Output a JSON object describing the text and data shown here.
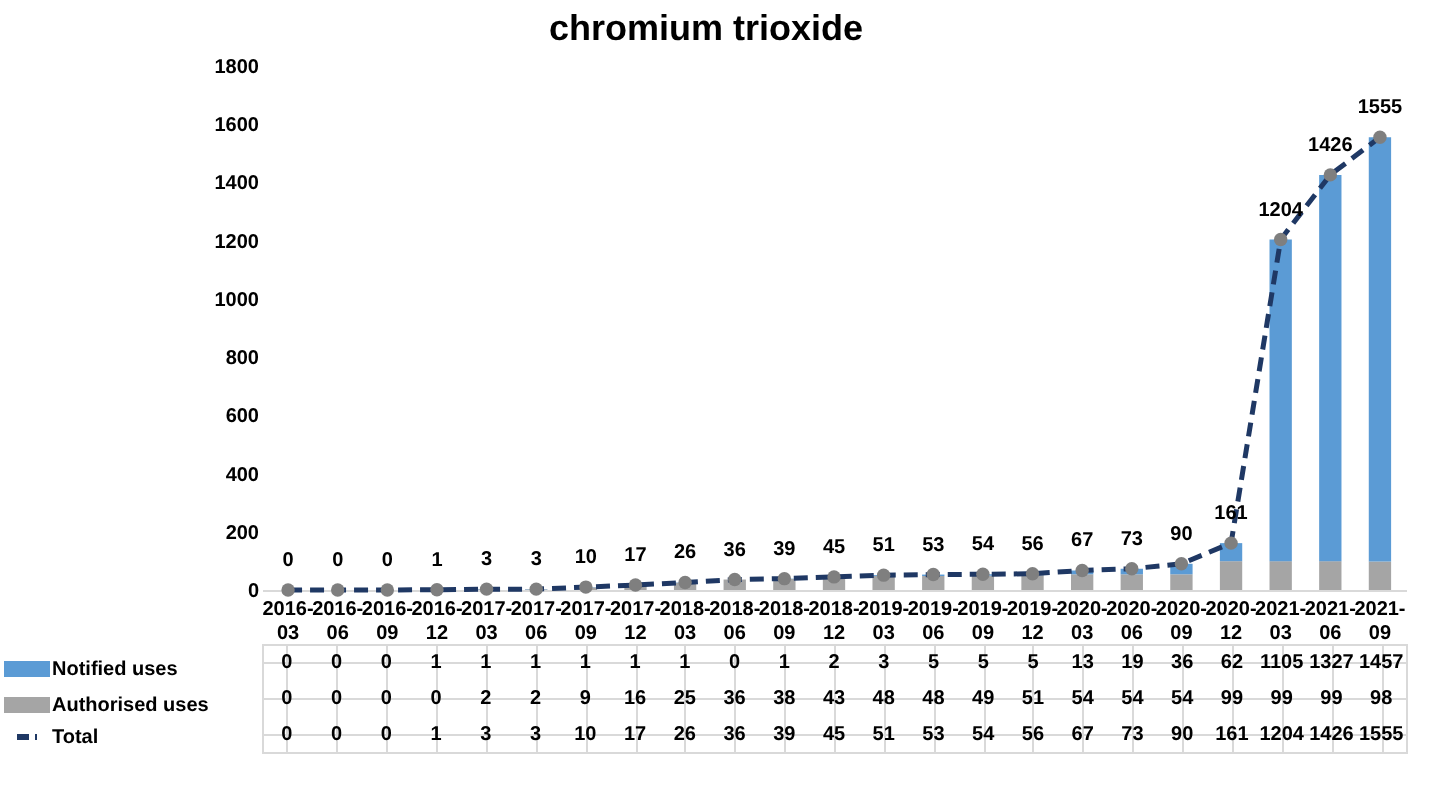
{
  "chart_data": {
    "type": "bar",
    "title": "chromium trioxide",
    "stacked": true,
    "categories": [
      "2016-03",
      "2016-06",
      "2016-09",
      "2016-12",
      "2017-03",
      "2017-06",
      "2017-09",
      "2017-12",
      "2018-03",
      "2018-06",
      "2018-09",
      "2018-12",
      "2019-03",
      "2019-06",
      "2019-09",
      "2019-12",
      "2020-03",
      "2020-06",
      "2020-09",
      "2020-12",
      "2021-03",
      "2021-06",
      "2021-09"
    ],
    "series": [
      {
        "name": "Authorised uses",
        "color": "#a5a5a5",
        "values": [
          0,
          0,
          0,
          0,
          2,
          2,
          9,
          16,
          25,
          36,
          38,
          43,
          48,
          48,
          49,
          51,
          54,
          54,
          54,
          99,
          99,
          99,
          98
        ]
      },
      {
        "name": "Notified uses",
        "color": "#5b9bd5",
        "values": [
          0,
          0,
          0,
          1,
          1,
          1,
          1,
          1,
          1,
          0,
          1,
          2,
          3,
          5,
          5,
          5,
          13,
          19,
          36,
          62,
          1105,
          1327,
          1457
        ]
      },
      {
        "name": "Total",
        "type": "line",
        "color": "#1f3864",
        "marker": "circle",
        "line_style": "dashed",
        "values": [
          0,
          0,
          0,
          1,
          3,
          3,
          10,
          17,
          26,
          36,
          39,
          45,
          51,
          53,
          54,
          56,
          67,
          73,
          90,
          161,
          1204,
          1426,
          1555
        ]
      }
    ],
    "ylim": [
      0,
      1800
    ],
    "yticks": [
      0,
      200,
      400,
      600,
      800,
      1000,
      1200,
      1400,
      1600,
      1800
    ],
    "annotations": [
      {
        "text": "0",
        "x": "2016-03",
        "y": 0
      },
      {
        "text": "0",
        "x": "2016-06",
        "y": 0
      },
      {
        "text": "0",
        "x": "2016-09",
        "y": 0
      },
      {
        "text": "1",
        "x": "2016-12",
        "y": 1
      },
      {
        "text": "3",
        "x": "2017-03",
        "y": 3
      },
      {
        "text": "3",
        "x": "2017-06",
        "y": 3
      },
      {
        "text": "10",
        "x": "2017-09",
        "y": 10
      },
      {
        "text": "17",
        "x": "2017-12",
        "y": 17
      },
      {
        "text": "26",
        "x": "2018-03",
        "y": 26
      },
      {
        "text": "36",
        "x": "2018-06",
        "y": 36
      },
      {
        "text": "39",
        "x": "2018-09",
        "y": 39
      },
      {
        "text": "45",
        "x": "2018-12",
        "y": 45
      },
      {
        "text": "51",
        "x": "2019-03",
        "y": 51
      },
      {
        "text": "53",
        "x": "2019-06",
        "y": 53
      },
      {
        "text": "54",
        "x": "2019-09",
        "y": 54
      },
      {
        "text": "56",
        "x": "2019-12",
        "y": 56
      },
      {
        "text": "67",
        "x": "2020-03",
        "y": 67
      },
      {
        "text": "73",
        "x": "2020-06",
        "y": 73
      },
      {
        "text": "90",
        "x": "2020-09",
        "y": 90
      },
      {
        "text": "161",
        "x": "2020-12",
        "y": 161
      },
      {
        "text": "1204",
        "x": "2021-03",
        "y": 1204
      },
      {
        "text": "1426",
        "x": "2021-06",
        "y": 1426
      },
      {
        "text": "1555",
        "x": "2021-09",
        "y": 1555
      }
    ],
    "grid": false,
    "legend": "bottom left",
    "data_labels": true
  }
}
